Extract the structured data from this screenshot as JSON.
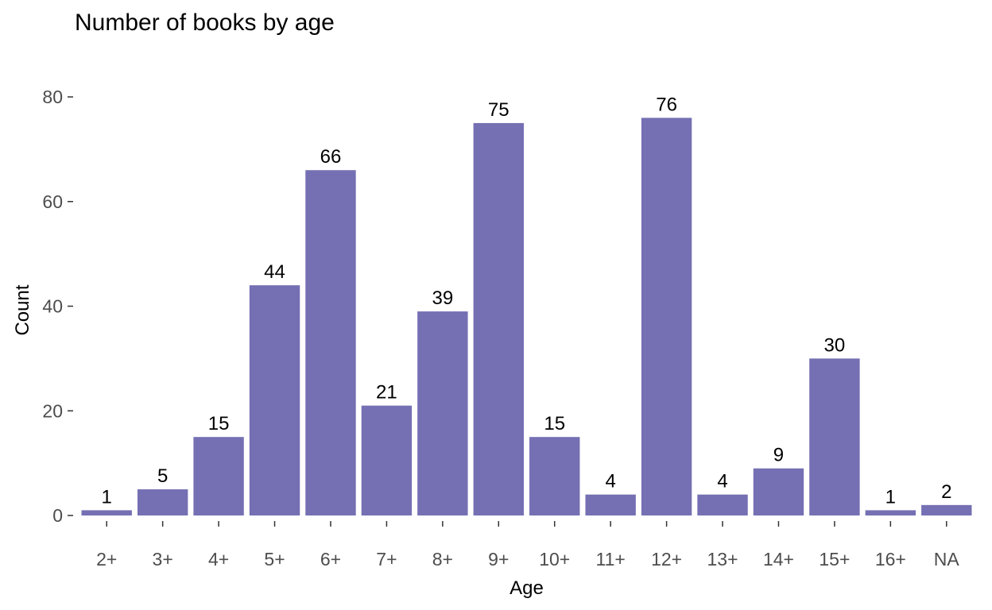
{
  "chart_data": {
    "type": "bar",
    "title": "Number of books by age",
    "xlabel": "Age",
    "ylabel": "Count",
    "categories": [
      "2+",
      "3+",
      "4+",
      "5+",
      "6+",
      "7+",
      "8+",
      "9+",
      "10+",
      "11+",
      "12+",
      "13+",
      "14+",
      "15+",
      "16+",
      "NA"
    ],
    "values": [
      1,
      5,
      15,
      44,
      66,
      21,
      39,
      75,
      15,
      4,
      76,
      4,
      9,
      30,
      1,
      2
    ],
    "yticks": [
      0,
      20,
      40,
      60,
      80
    ],
    "ylim": [
      0,
      80
    ],
    "grid": false,
    "legend": "none",
    "bar_color": "#7570b3",
    "data_labels": true
  }
}
